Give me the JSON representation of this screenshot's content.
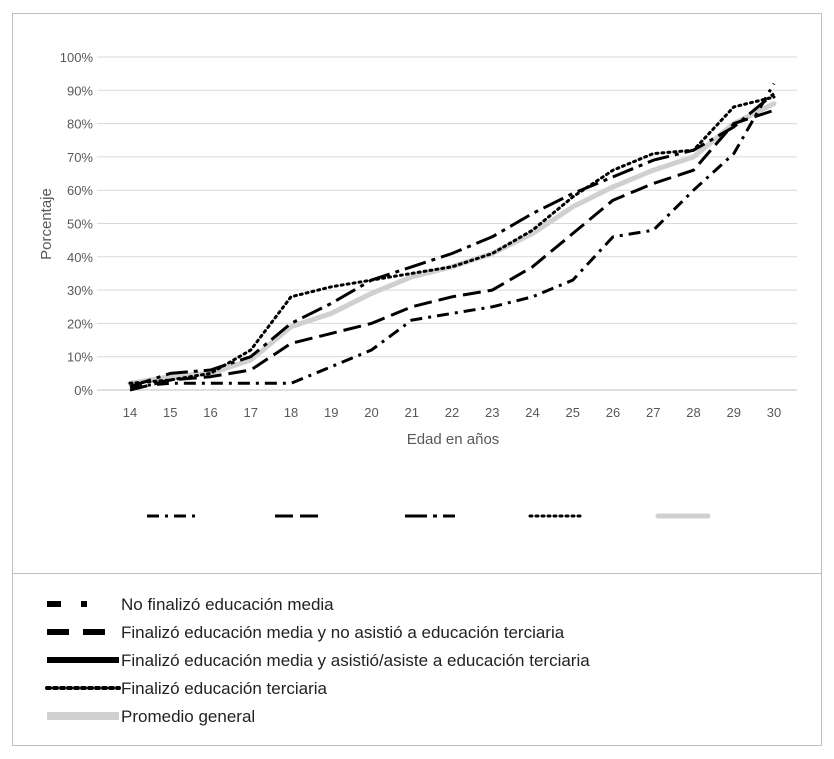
{
  "chart_data": {
    "type": "line",
    "title": "",
    "xlabel": "Edad en años",
    "ylabel": "Porcentaje",
    "x": [
      14,
      15,
      16,
      17,
      18,
      19,
      20,
      21,
      22,
      23,
      24,
      25,
      26,
      27,
      28,
      29,
      30
    ],
    "ylim": [
      0,
      1
    ],
    "yticks": [
      "0%",
      "10%",
      "20%",
      "30%",
      "40%",
      "50%",
      "60%",
      "70%",
      "80%",
      "90%",
      "100%"
    ],
    "grid": true,
    "legend_position": "bottom",
    "series": [
      {
        "name": "No finalizó educación media",
        "style": "dash-dot",
        "color": "#000000",
        "values": [
          0.01,
          0.02,
          0.02,
          0.02,
          0.02,
          0.07,
          0.12,
          0.21,
          0.23,
          0.25,
          0.28,
          0.33,
          0.46,
          0.48,
          0.6,
          0.71,
          0.92
        ]
      },
      {
        "name": "Finalizó educación media y no asistió a educación terciaria",
        "style": "long-dash",
        "color": "#000000",
        "values": [
          0.0,
          0.03,
          0.04,
          0.06,
          0.14,
          0.17,
          0.2,
          0.25,
          0.28,
          0.3,
          0.37,
          0.47,
          0.57,
          0.62,
          0.66,
          0.8,
          0.84
        ]
      },
      {
        "name": "Finalizó educación media y asistió/asiste a educación terciaria",
        "style": "dash-dot-long",
        "color": "#000000",
        "values": [
          0.01,
          0.05,
          0.06,
          0.1,
          0.2,
          0.26,
          0.33,
          0.37,
          0.41,
          0.46,
          0.53,
          0.59,
          0.64,
          0.69,
          0.72,
          0.79,
          0.89
        ]
      },
      {
        "name": "Finalizó educación terciaria",
        "style": "dotted",
        "color": "#000000",
        "values": [
          0.02,
          0.03,
          0.05,
          0.12,
          0.28,
          0.31,
          0.33,
          0.35,
          0.37,
          0.41,
          0.48,
          0.58,
          0.66,
          0.71,
          0.72,
          0.85,
          0.88
        ]
      },
      {
        "name": "Promedio general",
        "style": "solid-thick",
        "color": "#d0d0d0",
        "values": [
          0.02,
          0.04,
          0.05,
          0.09,
          0.19,
          0.23,
          0.29,
          0.34,
          0.37,
          0.41,
          0.47,
          0.55,
          0.61,
          0.66,
          0.7,
          0.8,
          0.86
        ]
      }
    ]
  }
}
